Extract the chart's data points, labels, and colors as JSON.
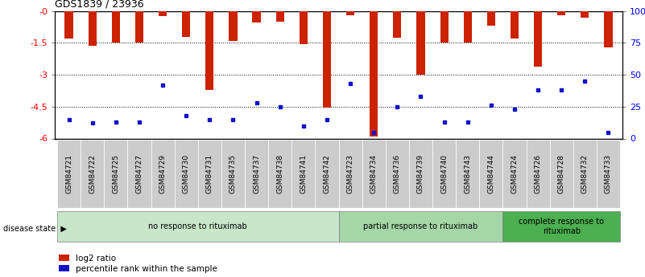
{
  "title": "GDS1839 / 23936",
  "samples": [
    "GSM84721",
    "GSM84722",
    "GSM84725",
    "GSM84727",
    "GSM84729",
    "GSM84730",
    "GSM84731",
    "GSM84735",
    "GSM84737",
    "GSM84738",
    "GSM84741",
    "GSM84742",
    "GSM84723",
    "GSM84734",
    "GSM84736",
    "GSM84739",
    "GSM84740",
    "GSM84743",
    "GSM84744",
    "GSM84724",
    "GSM84726",
    "GSM84728",
    "GSM84732",
    "GSM84733"
  ],
  "log2_ratio": [
    -1.3,
    -1.65,
    -1.5,
    -1.5,
    -0.25,
    -1.2,
    -3.7,
    -1.4,
    -0.55,
    -0.5,
    -1.55,
    -4.55,
    -0.2,
    -5.9,
    -1.25,
    -3.0,
    -1.5,
    -1.5,
    -0.7,
    -1.3,
    -2.6,
    -0.2,
    -0.3,
    -1.7
  ],
  "percentile": [
    15,
    12,
    13,
    13,
    42,
    18,
    15,
    15,
    28,
    25,
    10,
    15,
    43,
    5,
    25,
    33,
    13,
    13,
    26,
    23,
    38,
    38,
    45,
    5
  ],
  "groups": [
    {
      "label": "no response to rituximab",
      "start": 0,
      "end": 12,
      "color": "#c8e6c9"
    },
    {
      "label": "partial response to rituximab",
      "start": 12,
      "end": 19,
      "color": "#a5d6a7"
    },
    {
      "label": "complete response to\nrituximab",
      "start": 19,
      "end": 24,
      "color": "#4caf50"
    }
  ],
  "bar_color": "#cc2200",
  "dot_color": "#1111cc",
  "ylim_left": [
    -6.0,
    0.0
  ],
  "ylim_right": [
    0,
    100
  ],
  "yticks_left": [
    0,
    -1.5,
    -3.0,
    -4.5,
    -6.0
  ],
  "yticks_right": [
    0,
    25,
    50,
    75,
    100
  ],
  "ytick_labels_left": [
    "-0",
    "-1.5",
    "-3",
    "-4.5",
    "-6"
  ],
  "ytick_labels_right": [
    "0",
    "25",
    "50",
    "75",
    "100%"
  ],
  "legend_items": [
    "log2 ratio",
    "percentile rank within the sample"
  ],
  "disease_state_label": "disease state",
  "background_color": "#ffffff",
  "plot_bg_color": "#ffffff",
  "tick_bg_color": "#cccccc"
}
